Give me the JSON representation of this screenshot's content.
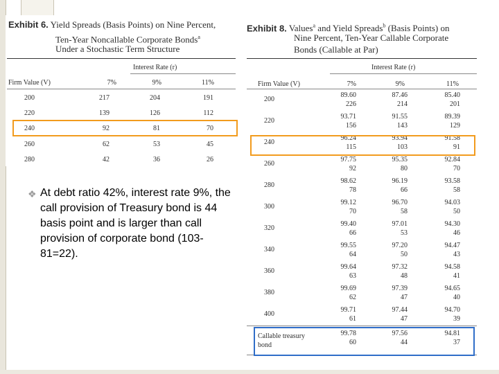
{
  "highlight_colors": {
    "orange": "#f29b1d",
    "blue": "#2f6dc8"
  },
  "exhibit6": {
    "label": "Exhibit 6.",
    "title_lines": [
      "Yield Spreads (Basis Points) on Nine Percent,",
      "Ten-Year Noncallable Corporate Bonds",
      "Under a Stochastic Term Structure"
    ],
    "title_superscript": "a",
    "group_header": "Interest Rate (r)",
    "columns": [
      "Firm Value (V)",
      "7%",
      "9%",
      "11%"
    ],
    "rows": [
      [
        "200",
        "217",
        "204",
        "191"
      ],
      [
        "220",
        "139",
        "126",
        "112"
      ],
      [
        "240",
        "92",
        "81",
        "70"
      ],
      [
        "260",
        "62",
        "53",
        "45"
      ],
      [
        "280",
        "42",
        "36",
        "26"
      ]
    ],
    "highlighted_row": "240"
  },
  "exhibit8": {
    "label": "Exhibit 8.",
    "title_lines": [
      "Values and Yield Spreads (Basis Points) on",
      "Nine Percent, Ten-Year Callable Corporate",
      "Bonds (Callable at Par)"
    ],
    "superscripts": [
      "a",
      "b"
    ],
    "group_header": "Interest Rate (r)",
    "columns": [
      "Firm Value (V)",
      "7%",
      "9%",
      "11%"
    ],
    "rows": [
      {
        "firm": "200",
        "values": [
          "89.60",
          "87.46",
          "85.40"
        ],
        "spreads": [
          "226",
          "214",
          "201"
        ]
      },
      {
        "firm": "220",
        "values": [
          "93.71",
          "91.55",
          "89.39"
        ],
        "spreads": [
          "156",
          "143",
          "129"
        ]
      },
      {
        "firm": "240",
        "values": [
          "96.24",
          "93.94",
          "91.58"
        ],
        "spreads": [
          "115",
          "103",
          "91"
        ]
      },
      {
        "firm": "260",
        "values": [
          "97.75",
          "95.35",
          "92.84"
        ],
        "spreads": [
          "92",
          "80",
          "70"
        ]
      },
      {
        "firm": "280",
        "values": [
          "98.62",
          "96.19",
          "93.58"
        ],
        "spreads": [
          "78",
          "66",
          "58"
        ]
      },
      {
        "firm": "300",
        "values": [
          "99.12",
          "96.70",
          "94.03"
        ],
        "spreads": [
          "70",
          "58",
          "50"
        ]
      },
      {
        "firm": "320",
        "values": [
          "99.40",
          "97.01",
          "94.30"
        ],
        "spreads": [
          "66",
          "53",
          "46"
        ]
      },
      {
        "firm": "340",
        "values": [
          "99.55",
          "97.20",
          "94.47"
        ],
        "spreads": [
          "64",
          "50",
          "43"
        ]
      },
      {
        "firm": "360",
        "values": [
          "99.64",
          "97.32",
          "94.58"
        ],
        "spreads": [
          "63",
          "48",
          "41"
        ]
      },
      {
        "firm": "380",
        "values": [
          "99.69",
          "97.39",
          "94.65"
        ],
        "spreads": [
          "62",
          "47",
          "40"
        ]
      },
      {
        "firm": "400",
        "values": [
          "99.71",
          "97.44",
          "94.70"
        ],
        "spreads": [
          "61",
          "47",
          "39"
        ]
      }
    ],
    "treasury_row": {
      "label_lines": [
        "Callable treasury",
        "bond"
      ],
      "values": [
        "99.78",
        "97.56",
        "94.81"
      ],
      "spreads": [
        "60",
        "44",
        "37"
      ]
    },
    "highlighted_row": "240"
  },
  "bullet": {
    "text": "At debt ratio 42%, interest rate  9%, the call provision of Treasury bond is 44 basis point and is larger than call provision of corporate bond (103-81=22)."
  }
}
